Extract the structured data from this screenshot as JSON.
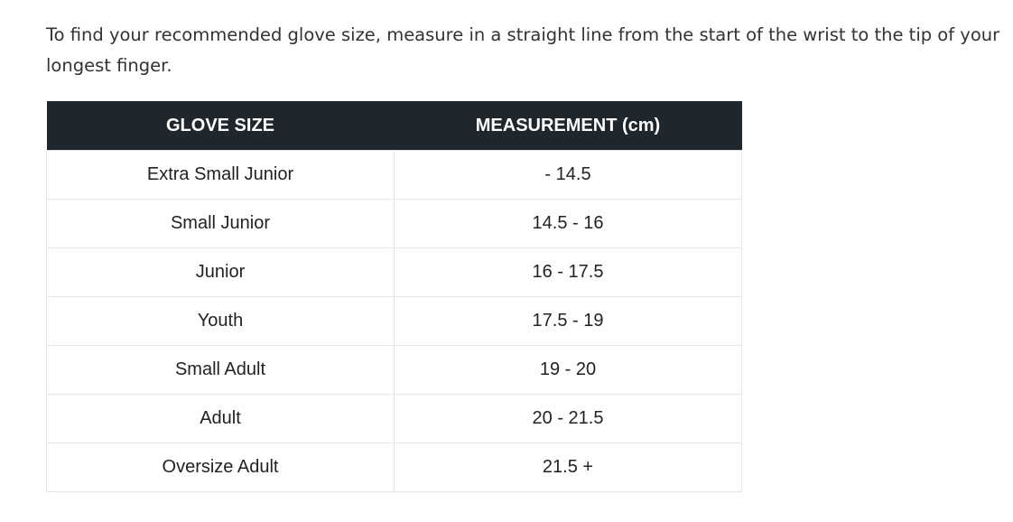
{
  "intro": "To find your recommended glove size, measure in a straight line from the start of the wrist to the tip of your longest finger.",
  "table": {
    "headers": [
      "GLOVE SIZE",
      "MEASUREMENT (cm)"
    ],
    "rows": [
      [
        "Extra Small Junior",
        "- 14.5"
      ],
      [
        "Small Junior",
        "14.5 - 16"
      ],
      [
        "Junior",
        "16 - 17.5"
      ],
      [
        "Youth",
        "17.5 - 19"
      ],
      [
        "Small Adult",
        "19 - 20"
      ],
      [
        "Adult",
        "20 - 21.5"
      ],
      [
        "Oversize Adult",
        "21.5 +"
      ]
    ]
  },
  "colors": {
    "header_bg": "#1f272d",
    "header_text": "#ffffff",
    "border": "#e6e6e6"
  }
}
